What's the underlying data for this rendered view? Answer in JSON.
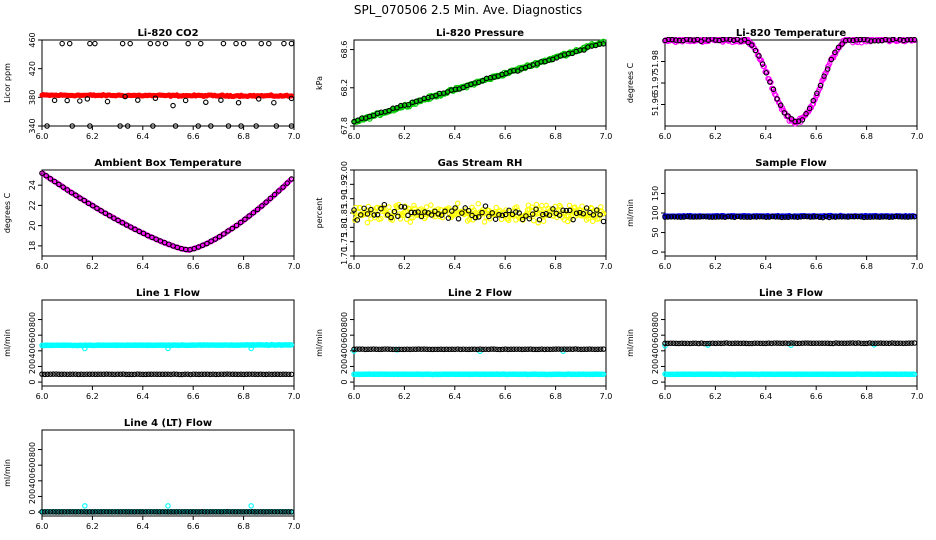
{
  "title": "SPL_070506  2.5 Min. Ave. Diagnostics",
  "chart_data": [
    {
      "id": "co2",
      "type": "scatter",
      "title": "Li-820 CO2",
      "ylabel": "Licor ppm",
      "xlim": [
        6.0,
        7.0
      ],
      "ylim": [
        340,
        460
      ],
      "xticks": [
        6.0,
        6.2,
        6.4,
        6.6,
        6.8,
        7.0
      ],
      "xtick_labels": [
        "6.0",
        "6.2",
        "6.4",
        "6.6",
        "6.8",
        "7.0"
      ],
      "yticks": [
        340,
        380,
        420,
        460
      ],
      "ytick_labels": [
        "340",
        "380",
        "420",
        "460"
      ],
      "series": [
        {
          "name": "co2_main",
          "color": "#ff0000",
          "shape": "filled",
          "pattern": "flat",
          "from": 6.0,
          "to": 6.99,
          "n": 160,
          "y0": 383,
          "y1": 382,
          "noise": 1.5
        },
        {
          "name": "co2_hi",
          "color": "#000000",
          "shape": "open",
          "pattern": "sparse",
          "xs": [
            6.08,
            6.11,
            6.19,
            6.21,
            6.32,
            6.35,
            6.43,
            6.46,
            6.49,
            6.58,
            6.63,
            6.72,
            6.77,
            6.8,
            6.87,
            6.9,
            6.96,
            6.99
          ],
          "y0": 455,
          "y1": 455,
          "noise": 0
        },
        {
          "name": "co2_mid",
          "color": "#000000",
          "shape": "open",
          "pattern": "sparse",
          "xs": [
            6.05,
            6.1,
            6.15,
            6.18,
            6.26,
            6.33,
            6.38,
            6.45,
            6.52,
            6.57,
            6.65,
            6.71,
            6.78,
            6.86,
            6.92,
            6.99
          ],
          "y0": 375,
          "y1": 375,
          "noise": 10
        },
        {
          "name": "co2_lo",
          "color": "#000000",
          "shape": "open",
          "pattern": "sparse",
          "xs": [
            6.02,
            6.12,
            6.19,
            6.31,
            6.34,
            6.44,
            6.53,
            6.62,
            6.67,
            6.74,
            6.79,
            6.85,
            6.93,
            6.99
          ],
          "y0": 340,
          "y1": 340,
          "noise": 0
        }
      ]
    },
    {
      "id": "pressure",
      "type": "scatter",
      "title": "Li-820 Pressure",
      "ylabel": "kPa",
      "xlim": [
        6.0,
        7.0
      ],
      "ylim": [
        67.8,
        68.7
      ],
      "xticks": [
        6.0,
        6.2,
        6.4,
        6.6,
        6.8,
        7.0
      ],
      "xtick_labels": [
        "6.0",
        "6.2",
        "6.4",
        "6.6",
        "6.8",
        "7.0"
      ],
      "yticks": [
        67.8,
        68.2,
        68.6
      ],
      "ytick_labels": [
        "67.8",
        "68.2",
        "68.6"
      ],
      "series": [
        {
          "name": "pressure_main",
          "color": "#00cc00",
          "shape": "open",
          "pattern": "linear",
          "from": 6.0,
          "to": 6.99,
          "n": 240,
          "y0": 67.84,
          "y1": 68.68,
          "noise": 0.025
        },
        {
          "name": "pressure_sub",
          "color": "#000000",
          "shape": "open",
          "pattern": "linear",
          "from": 6.0,
          "to": 6.99,
          "n": 65,
          "y0": 67.85,
          "y1": 68.67,
          "noise": 0.015
        }
      ]
    },
    {
      "id": "licor_temp",
      "type": "scatter",
      "title": "Li-820 Temperature",
      "ylabel": "degrees C",
      "xlim": [
        6.0,
        7.0
      ],
      "ylim": [
        51.95,
        51.99
      ],
      "xticks": [
        6.0,
        6.2,
        6.4,
        6.6,
        6.8,
        7.0
      ],
      "xtick_labels": [
        "6.0",
        "6.2",
        "6.4",
        "6.6",
        "6.8",
        "7.0"
      ],
      "yticks": [
        51.96,
        51.97,
        51.98
      ],
      "ytick_labels": [
        "51.96",
        "51.97",
        "51.98"
      ],
      "series": [
        {
          "name": "licor_temp_main",
          "color": "#ff00ff",
          "shape": "open",
          "pattern": "trough",
          "from": 6.0,
          "to": 6.99,
          "n": 260,
          "base": 51.99,
          "low": 51.952,
          "center": 6.52,
          "half": 0.21,
          "noise": 0.0015
        },
        {
          "name": "licor_temp_sub",
          "color": "#000000",
          "shape": "open",
          "pattern": "trough",
          "from": 6.0,
          "to": 6.99,
          "n": 70,
          "base": 51.99,
          "low": 51.952,
          "center": 6.52,
          "half": 0.21,
          "noise": 0.001
        }
      ]
    },
    {
      "id": "ambient_temp",
      "type": "scatter",
      "title": "Ambient Box Temperature",
      "ylabel": "degrees C",
      "xlim": [
        6.0,
        7.0
      ],
      "ylim": [
        17,
        25.5
      ],
      "xticks": [
        6.0,
        6.2,
        6.4,
        6.6,
        6.8,
        7.0
      ],
      "xtick_labels": [
        "6.0",
        "6.2",
        "6.4",
        "6.6",
        "6.8",
        "7.0"
      ],
      "yticks": [
        18,
        20,
        22,
        24
      ],
      "ytick_labels": [
        "18",
        "20",
        "22",
        "24"
      ],
      "series": [
        {
          "name": "ambient_main",
          "color": "#ff00ff",
          "shape": "open",
          "pattern": "vee",
          "from": 6.0,
          "to": 6.99,
          "n": 200,
          "left": 25.2,
          "right": 24.6,
          "low": 17.6,
          "xmin": 6.58,
          "noise": 0.05
        },
        {
          "name": "ambient_sub",
          "color": "#000000",
          "shape": "open",
          "pattern": "vee",
          "from": 6.0,
          "to": 6.99,
          "n": 60,
          "left": 25.2,
          "right": 24.6,
          "low": 17.6,
          "xmin": 6.58,
          "noise": 0.03
        }
      ]
    },
    {
      "id": "rh",
      "type": "scatter",
      "title": "Gas Stream RH",
      "ylabel": "percent",
      "xlim": [
        6.0,
        7.0
      ],
      "ylim": [
        1.7,
        2.0
      ],
      "xticks": [
        6.0,
        6.2,
        6.4,
        6.6,
        6.8,
        7.0
      ],
      "xtick_labels": [
        "6.0",
        "6.2",
        "6.4",
        "6.6",
        "6.8",
        "7.0"
      ],
      "yticks": [
        1.7,
        1.75,
        1.8,
        1.85,
        1.9,
        1.95,
        2.0
      ],
      "ytick_labels": [
        "1.70",
        "1.75",
        "1.80",
        "1.85",
        "1.90",
        "1.95",
        "2.00"
      ],
      "series": [
        {
          "name": "rh_main",
          "color": "#ffff00",
          "shape": "open",
          "pattern": "flat",
          "from": 6.0,
          "to": 6.99,
          "n": 280,
          "y0": 1.85,
          "y1": 1.85,
          "noise": 0.04
        },
        {
          "name": "rh_sub",
          "color": "#000000",
          "shape": "open",
          "pattern": "flat",
          "from": 6.0,
          "to": 6.99,
          "n": 75,
          "y0": 1.85,
          "y1": 1.85,
          "noise": 0.035
        }
      ]
    },
    {
      "id": "sample_flow",
      "type": "scatter",
      "title": "Sample Flow",
      "ylabel": "ml/min",
      "xlim": [
        6.0,
        7.0
      ],
      "ylim": [
        -10,
        210
      ],
      "xticks": [
        6.0,
        6.2,
        6.4,
        6.6,
        6.8,
        7.0
      ],
      "xtick_labels": [
        "6.0",
        "6.2",
        "6.4",
        "6.6",
        "6.8",
        "7.0"
      ],
      "yticks": [
        0,
        50,
        100,
        150
      ],
      "ytick_labels": [
        "0",
        "50",
        "100",
        "150"
      ],
      "series": [
        {
          "name": "sample_main",
          "color": "#0000ff",
          "shape": "open",
          "pattern": "flat",
          "from": 6.0,
          "to": 6.99,
          "n": 200,
          "y0": 92,
          "y1": 92,
          "noise": 2
        },
        {
          "name": "sample_sub",
          "color": "#000000",
          "shape": "open",
          "pattern": "flat",
          "from": 6.0,
          "to": 6.99,
          "n": 80,
          "y0": 90,
          "y1": 90,
          "noise": 2
        }
      ]
    },
    {
      "id": "line1",
      "type": "scatter",
      "title": "Line 1 Flow",
      "ylabel": "ml/min",
      "xlim": [
        6.0,
        7.0
      ],
      "ylim": [
        -50,
        1050
      ],
      "xticks": [
        6.0,
        6.2,
        6.4,
        6.6,
        6.8,
        7.0
      ],
      "xtick_labels": [
        "6.0",
        "6.2",
        "6.4",
        "6.6",
        "6.8",
        "7.0"
      ],
      "yticks": [
        0,
        200,
        400,
        600,
        800
      ],
      "ytick_labels": [
        "0",
        "200",
        "400",
        "600",
        "800"
      ],
      "series": [
        {
          "name": "line1_cyan",
          "color": "#00ffff",
          "shape": "open",
          "pattern": "flat",
          "from": 6.0,
          "to": 6.99,
          "n": 200,
          "y0": 470,
          "y1": 475,
          "noise": 5
        },
        {
          "name": "line1_cyan_dips",
          "color": "#00ffff",
          "shape": "open",
          "pattern": "sparse",
          "xs": [
            6.17,
            6.5,
            6.83
          ],
          "y0": 430,
          "y1": 430,
          "noise": 0
        },
        {
          "name": "line1_black",
          "color": "#000000",
          "shape": "open",
          "pattern": "flat",
          "from": 6.0,
          "to": 6.99,
          "n": 90,
          "y0": 100,
          "y1": 100,
          "noise": 3
        }
      ]
    },
    {
      "id": "line2",
      "type": "scatter",
      "title": "Line 2 Flow",
      "ylabel": "ml/min",
      "xlim": [
        6.0,
        7.0
      ],
      "ylim": [
        -50,
        1050
      ],
      "xticks": [
        6.0,
        6.2,
        6.4,
        6.6,
        6.8,
        7.0
      ],
      "xtick_labels": [
        "6.0",
        "6.2",
        "6.4",
        "6.6",
        "6.8",
        "7.0"
      ],
      "yticks": [
        0,
        200,
        400,
        600,
        800
      ],
      "ytick_labels": [
        "0",
        "200",
        "400",
        "600",
        "800"
      ],
      "series": [
        {
          "name": "line2_cyan",
          "color": "#00ffff",
          "shape": "open",
          "pattern": "flat",
          "from": 6.0,
          "to": 6.99,
          "n": 200,
          "y0": 100,
          "y1": 100,
          "noise": 4
        },
        {
          "name": "line2_cyan_dips",
          "color": "#00ffff",
          "shape": "open",
          "pattern": "sparse",
          "xs": [
            6.0,
            6.17,
            6.5,
            6.83
          ],
          "y0": 400,
          "y1": 400,
          "noise": 15
        },
        {
          "name": "line2_black",
          "color": "#000000",
          "shape": "open",
          "pattern": "flat",
          "from": 6.0,
          "to": 6.99,
          "n": 90,
          "y0": 420,
          "y1": 420,
          "noise": 4
        }
      ]
    },
    {
      "id": "line3",
      "type": "scatter",
      "title": "Line 3 Flow",
      "ylabel": "ml/min",
      "xlim": [
        6.0,
        7.0
      ],
      "ylim": [
        -50,
        1050
      ],
      "xticks": [
        6.0,
        6.2,
        6.4,
        6.6,
        6.8,
        7.0
      ],
      "xtick_labels": [
        "6.0",
        "6.2",
        "6.4",
        "6.6",
        "6.8",
        "7.0"
      ],
      "yticks": [
        0,
        200,
        400,
        600,
        800
      ],
      "ytick_labels": [
        "0",
        "200",
        "400",
        "600",
        "800"
      ],
      "series": [
        {
          "name": "line3_cyan",
          "color": "#00ffff",
          "shape": "open",
          "pattern": "flat",
          "from": 6.0,
          "to": 6.99,
          "n": 200,
          "y0": 100,
          "y1": 100,
          "noise": 4
        },
        {
          "name": "line3_cyan_dips",
          "color": "#00ffff",
          "shape": "open",
          "pattern": "sparse",
          "xs": [
            6.0,
            6.17,
            6.5,
            6.83
          ],
          "y0": 470,
          "y1": 470,
          "noise": 15
        },
        {
          "name": "line3_black",
          "color": "#000000",
          "shape": "open",
          "pattern": "flat",
          "from": 6.0,
          "to": 6.99,
          "n": 90,
          "y0": 495,
          "y1": 498,
          "noise": 4
        }
      ]
    },
    {
      "id": "line4",
      "type": "scatter",
      "title": "Line 4 (LT) Flow",
      "ylabel": "ml/min",
      "xlim": [
        6.0,
        7.0
      ],
      "ylim": [
        -50,
        1050
      ],
      "xticks": [
        6.0,
        6.2,
        6.4,
        6.6,
        6.8,
        7.0
      ],
      "xtick_labels": [
        "6.0",
        "6.2",
        "6.4",
        "6.6",
        "6.8",
        "7.0"
      ],
      "yticks": [
        0,
        200,
        400,
        600,
        800
      ],
      "ytick_labels": [
        "0",
        "200",
        "400",
        "600",
        "800"
      ],
      "series": [
        {
          "name": "line4_cyan",
          "color": "#00ffff",
          "shape": "open",
          "pattern": "flat",
          "from": 6.0,
          "to": 6.99,
          "n": 180,
          "y0": 3,
          "y1": 3,
          "noise": 2
        },
        {
          "name": "line4_cyan_spikes",
          "color": "#00ffff",
          "shape": "open",
          "pattern": "sparse",
          "xs": [
            6.17,
            6.5,
            6.83
          ],
          "y0": 80,
          "y1": 80,
          "noise": 0
        },
        {
          "name": "line4_black",
          "color": "#000000",
          "shape": "open",
          "pattern": "flat",
          "from": 6.0,
          "to": 6.99,
          "n": 90,
          "y0": 3,
          "y1": 3,
          "noise": 1
        }
      ]
    }
  ]
}
